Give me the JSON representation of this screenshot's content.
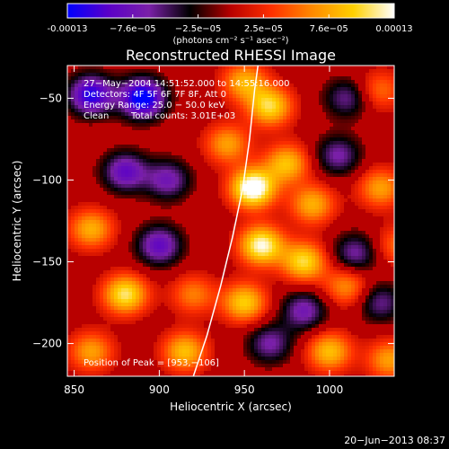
{
  "chart_data": {
    "type": "heatmap",
    "title": "Reconstructed RHESSI Image",
    "xlabel": "Heliocentric X (arcsec)",
    "ylabel": "Heliocentric Y (arcsec)",
    "xlim": [
      846,
      1038
    ],
    "ylim": [
      -220,
      -30
    ],
    "x_ticks": [
      850,
      900,
      950,
      1000
    ],
    "y_ticks": [
      -50,
      -100,
      -150,
      -200
    ],
    "colorbar": {
      "range": [
        -0.00013,
        0.00013
      ],
      "ticks": [
        "-0.00013",
        "−7.6e−05",
        "−2.5e−05",
        "2.5e−05",
        "7.6e−05",
        "0.00013"
      ],
      "unit_label": "(photons cm⁻² s⁻¹ asec⁻²)",
      "colormap": [
        "#0000ff",
        "#5a00c8",
        "#7a20a8",
        "#000000",
        "#b80000",
        "#ff3000",
        "#ff8a00",
        "#ffd000",
        "#ffffff"
      ]
    },
    "annotations": [
      "27−May−2004 14:51:52.000 to 14:55:16.000",
      "Detectors: 4F 5F 6F 7F 8F, Att 0",
      "Energy Range: 25.0 − 50.0 keV",
      "Clean",
      "Total counts: 3.01E+03"
    ],
    "peak_label": "Position of Peak = [953,−106]",
    "peak": {
      "x": 953,
      "y": -106
    },
    "limb_curve": [
      [
        920,
        -220
      ],
      [
        928,
        -195
      ],
      [
        936,
        -165
      ],
      [
        943,
        -135
      ],
      [
        949,
        -105
      ],
      [
        953,
        -75
      ],
      [
        956,
        -45
      ],
      [
        958,
        -30
      ]
    ],
    "sources": [
      {
        "x": 860,
        "y": -48,
        "v": -0.8
      },
      {
        "x": 890,
        "y": -50,
        "v": -0.95
      },
      {
        "x": 950,
        "y": -40,
        "v": 0.55
      },
      {
        "x": 965,
        "y": -55,
        "v": 0.7
      },
      {
        "x": 1010,
        "y": -50,
        "v": -0.4
      },
      {
        "x": 1030,
        "y": -45,
        "v": 0.35
      },
      {
        "x": 955,
        "y": -105,
        "v": 1.0
      },
      {
        "x": 975,
        "y": -90,
        "v": 0.6
      },
      {
        "x": 940,
        "y": -78,
        "v": 0.5
      },
      {
        "x": 990,
        "y": -115,
        "v": 0.55
      },
      {
        "x": 1030,
        "y": -105,
        "v": 0.5
      },
      {
        "x": 880,
        "y": -95,
        "v": -0.6
      },
      {
        "x": 905,
        "y": -100,
        "v": -0.5
      },
      {
        "x": 1005,
        "y": -85,
        "v": -0.45
      },
      {
        "x": 860,
        "y": -130,
        "v": 0.55
      },
      {
        "x": 900,
        "y": -140,
        "v": -0.6
      },
      {
        "x": 960,
        "y": -140,
        "v": 0.85
      },
      {
        "x": 985,
        "y": -150,
        "v": 0.7
      },
      {
        "x": 1015,
        "y": -145,
        "v": -0.45
      },
      {
        "x": 1040,
        "y": -140,
        "v": 0.35
      },
      {
        "x": 880,
        "y": -170,
        "v": 0.75
      },
      {
        "x": 920,
        "y": -170,
        "v": 0.4
      },
      {
        "x": 950,
        "y": -175,
        "v": 0.65
      },
      {
        "x": 985,
        "y": -180,
        "v": -0.5
      },
      {
        "x": 1010,
        "y": -165,
        "v": 0.45
      },
      {
        "x": 1030,
        "y": -175,
        "v": -0.4
      },
      {
        "x": 860,
        "y": -205,
        "v": 0.5
      },
      {
        "x": 915,
        "y": -205,
        "v": 0.6
      },
      {
        "x": 965,
        "y": -200,
        "v": -0.45
      },
      {
        "x": 1000,
        "y": -205,
        "v": 0.6
      },
      {
        "x": 1035,
        "y": -210,
        "v": 0.5
      }
    ]
  },
  "footer": {
    "timestamp": "20−Jun−2013 08:37"
  }
}
